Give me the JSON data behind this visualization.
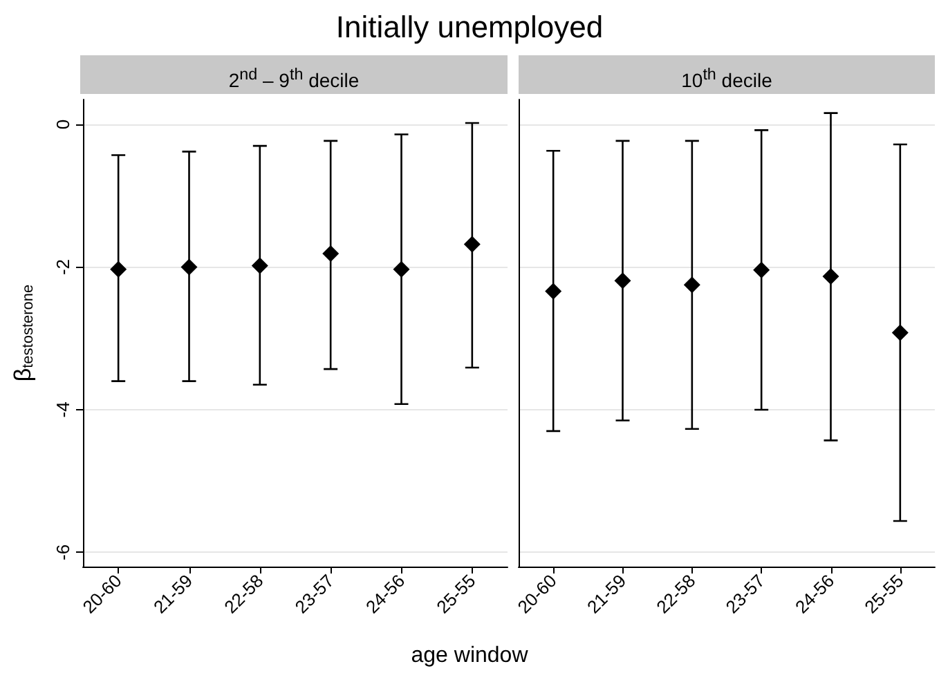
{
  "chart_data": [
    {
      "type": "scatter",
      "title": "Initially unemployed",
      "subtitle": "2$^{nd}$ – 9$^{th}$ decile",
      "xlabel": "age window",
      "ylabel": "β$_{testosterone}$",
      "categories": [
        "20-60",
        "21-59",
        "22-58",
        "23-57",
        "24-56",
        "25-55"
      ],
      "values": [
        -2.03,
        -2.0,
        -1.98,
        -1.81,
        -2.03,
        -1.68
      ],
      "errors": [
        [
          -3.6,
          -0.43
        ],
        [
          -3.6,
          -0.38
        ],
        [
          -3.65,
          -0.3
        ],
        [
          -3.43,
          -0.23
        ],
        [
          -3.92,
          -0.14
        ],
        [
          -3.41,
          0.02
        ]
      ],
      "color": "#000000",
      "marker": "diamond",
      "ylim": [
        -6.2,
        0.35
      ],
      "yticks": [
        -6,
        -4,
        -2,
        0
      ],
      "grid": "y"
    },
    {
      "type": "scatter",
      "subtitle": "10$^{th}$ decile",
      "categories": [
        "20-60",
        "21-59",
        "22-58",
        "23-57",
        "24-56",
        "25-55"
      ],
      "values": [
        -2.34,
        -2.19,
        -2.25,
        -2.04,
        -2.13,
        -2.92
      ],
      "errors": [
        [
          -4.3,
          -0.37
        ],
        [
          -4.15,
          -0.23
        ],
        [
          -4.27,
          -0.23
        ],
        [
          -4.0,
          -0.08
        ],
        [
          -4.43,
          0.16
        ],
        [
          -5.56,
          -0.28
        ]
      ],
      "color": "#000000",
      "marker": "diamond",
      "ylim": [
        -6.2,
        0.35
      ],
      "yticks": [
        -6,
        -4,
        -2,
        0
      ],
      "grid": "y",
      "tick_labels": "x"
    }
  ]
}
